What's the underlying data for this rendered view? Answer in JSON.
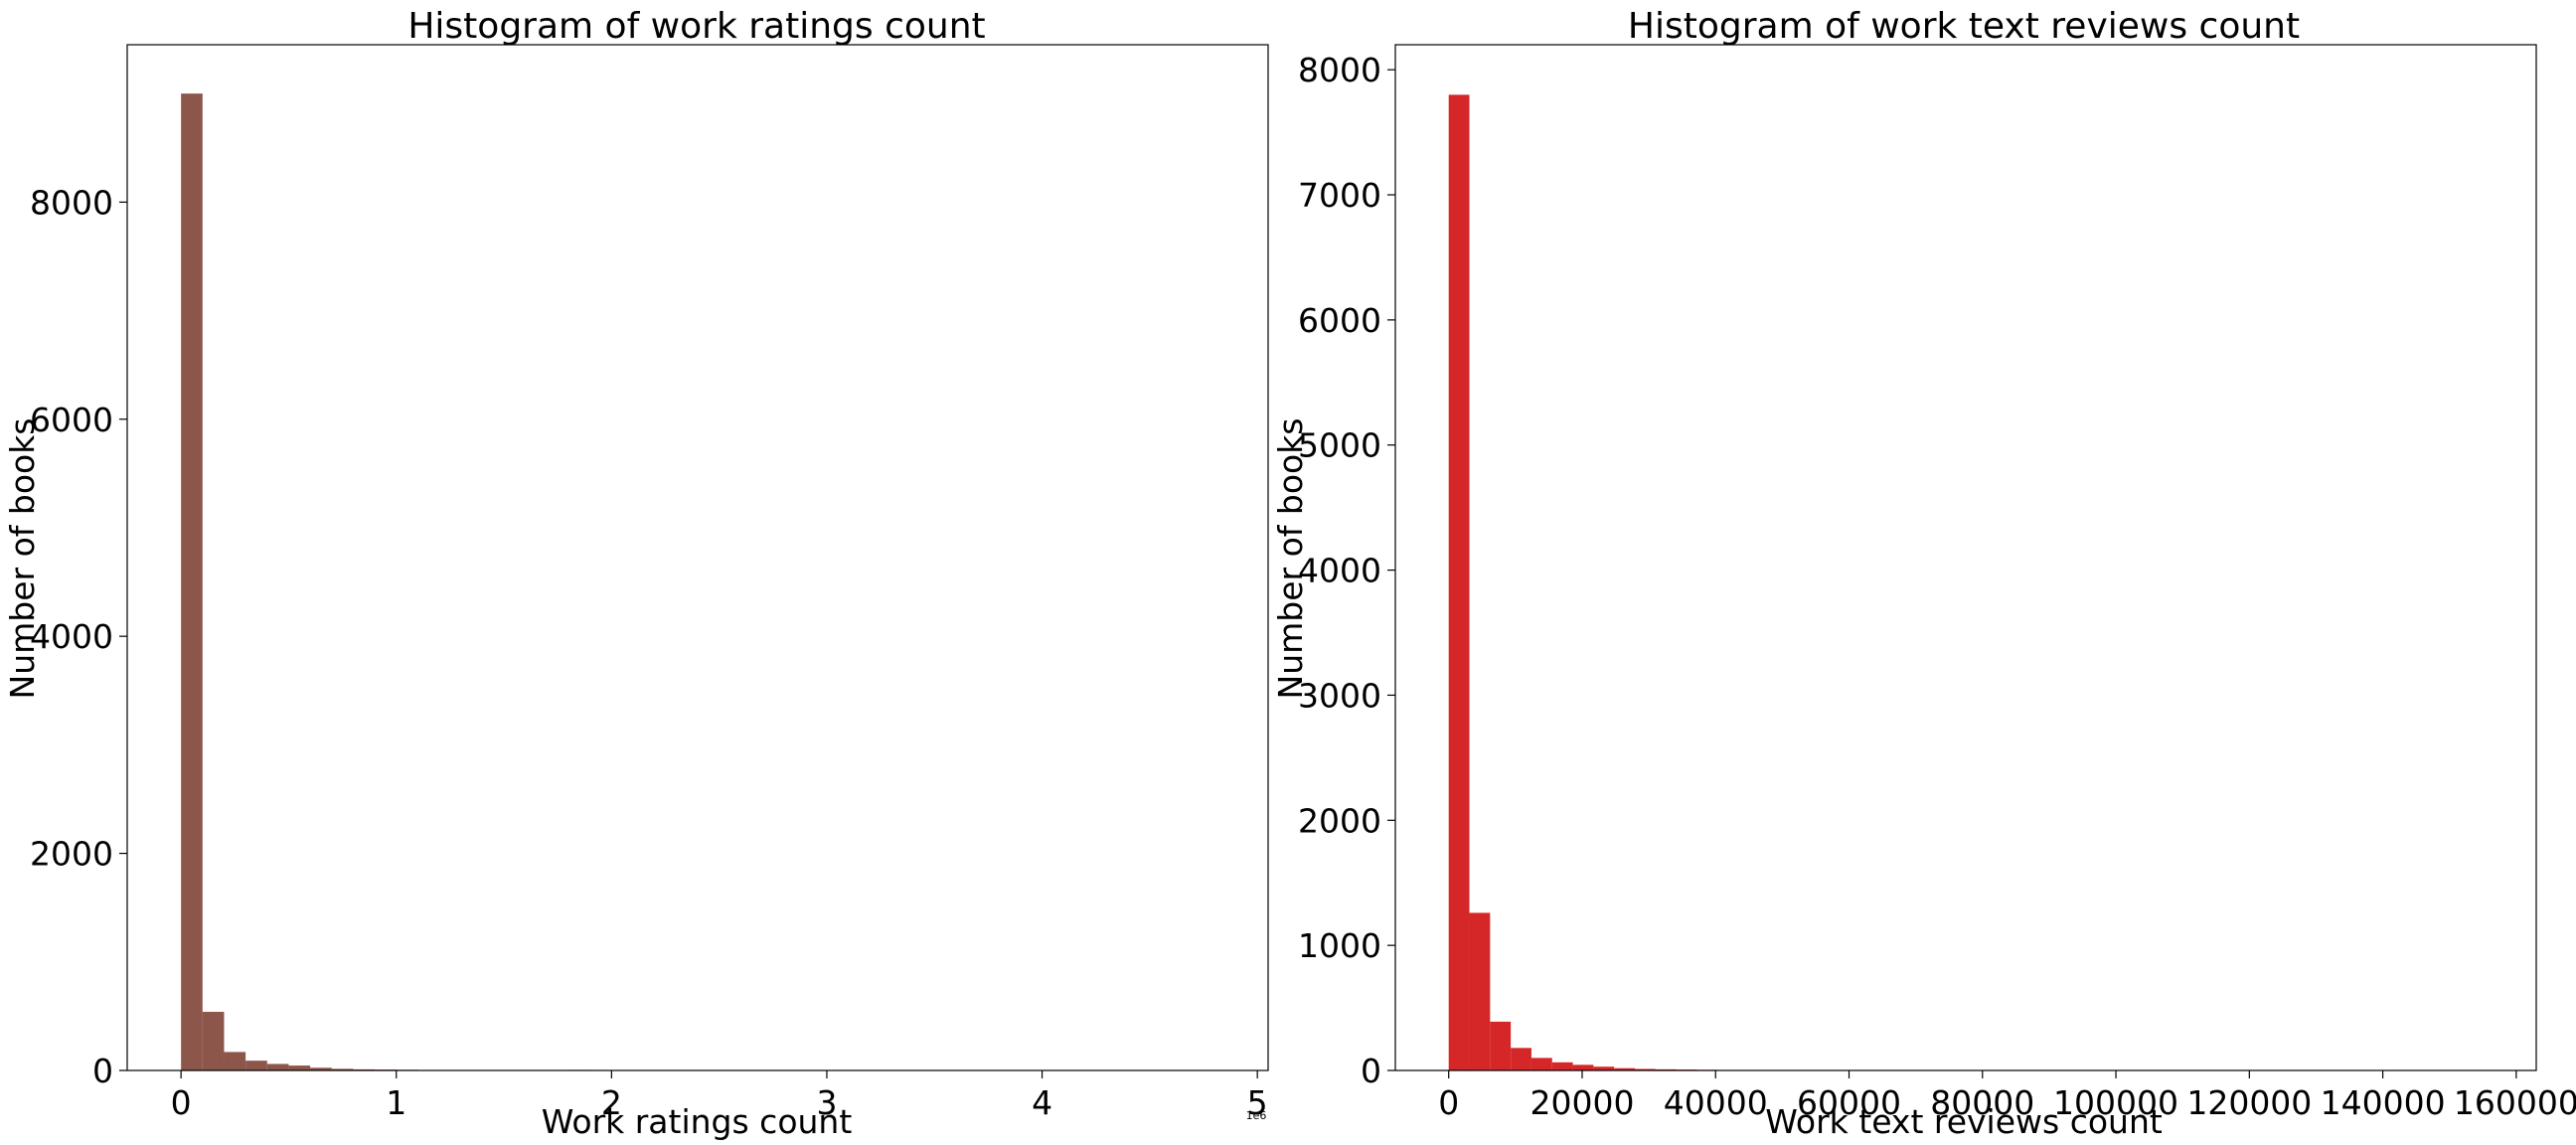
{
  "chart_data": [
    {
      "type": "bar",
      "title": "Histogram of work ratings count",
      "xlabel": "Work ratings count",
      "ylabel": "Number of books",
      "x_offset_label": "1e6",
      "xlim": [
        -0.25,
        5.05
      ],
      "ylim": [
        0,
        9450
      ],
      "x_ticks": [
        0,
        1,
        2,
        3,
        4,
        5
      ],
      "x_tick_labels": [
        "0",
        "1",
        "2",
        "3",
        "4",
        "5"
      ],
      "y_ticks": [
        0,
        2000,
        4000,
        6000,
        8000
      ],
      "y_tick_labels": [
        "0",
        "2000",
        "4000",
        "6000",
        "8000"
      ],
      "bin_start": 0,
      "bin_width": 0.1,
      "color": "#8c564b",
      "series": [
        {
          "values": [
            9000,
            540,
            170,
            90,
            60,
            45,
            25,
            15,
            10,
            8,
            6,
            4,
            3,
            2,
            2,
            2,
            1,
            1,
            5,
            1,
            1,
            1,
            0,
            1,
            0,
            1,
            0,
            0,
            1,
            0,
            0,
            0,
            0,
            0,
            0,
            0,
            0,
            0,
            0,
            0,
            0,
            0,
            0,
            0,
            0,
            0,
            0,
            0,
            0,
            1
          ]
        }
      ]
    },
    {
      "type": "bar",
      "title": "Histogram of work text reviews count",
      "xlabel": "Work text reviews count",
      "ylabel": "Number of books",
      "xlim": [
        -8000,
        163000
      ],
      "ylim": [
        0,
        8200
      ],
      "x_ticks": [
        0,
        20000,
        40000,
        60000,
        80000,
        100000,
        120000,
        140000,
        160000
      ],
      "x_tick_labels": [
        "0",
        "20000",
        "40000",
        "60000",
        "80000",
        "100000",
        "120000",
        "140000",
        "160000"
      ],
      "y_ticks": [
        0,
        1000,
        2000,
        3000,
        4000,
        5000,
        6000,
        7000,
        8000
      ],
      "y_tick_labels": [
        "0",
        "1000",
        "2000",
        "3000",
        "4000",
        "5000",
        "6000",
        "7000",
        "8000"
      ],
      "bin_start": 0,
      "bin_width": 3100,
      "color": "#d62728",
      "series": [
        {
          "values": [
            7800,
            1260,
            390,
            180,
            100,
            65,
            45,
            30,
            18,
            12,
            9,
            7,
            5,
            4,
            3,
            3,
            2,
            2,
            1,
            1,
            1,
            1,
            0,
            0,
            1,
            0,
            0,
            0,
            0,
            0,
            0,
            0,
            0,
            0,
            0,
            0,
            0,
            0,
            0,
            0,
            0,
            0,
            0,
            0,
            0,
            0,
            0,
            0,
            0,
            1
          ]
        }
      ]
    }
  ]
}
